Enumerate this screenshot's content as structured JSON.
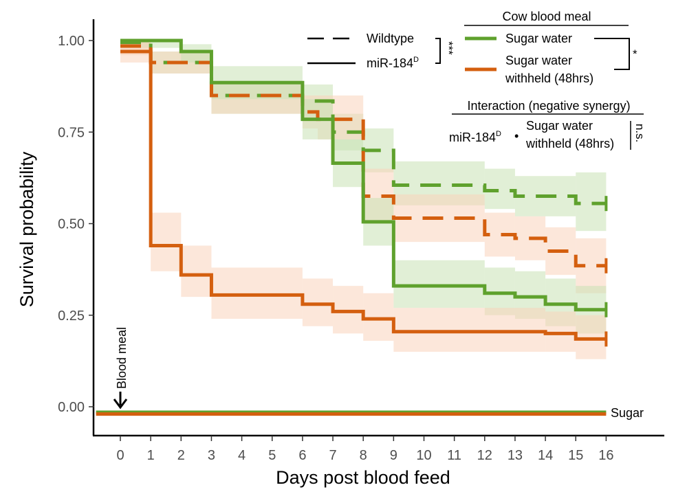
{
  "chart_data": {
    "type": "step-line",
    "title": "",
    "xlabel": "Days post blood feed",
    "ylabel": "Survival probability",
    "xlim": [
      -0.9,
      18.0
    ],
    "ylim": [
      -0.08,
      1.05
    ],
    "x_ticks": [
      0,
      1,
      2,
      3,
      4,
      5,
      6,
      7,
      8,
      9,
      10,
      11,
      12,
      13,
      14,
      15,
      16
    ],
    "y_ticks": [
      {
        "value": 0.0,
        "label": "0.00"
      },
      {
        "value": 0.25,
        "label": "0.25"
      },
      {
        "value": 0.5,
        "label": "0.50"
      },
      {
        "value": 0.75,
        "label": "0.75"
      },
      {
        "value": 1.0,
        "label": "1.00"
      }
    ],
    "colors": {
      "sugar_water": "#5fa12d",
      "sugar_withheld": "#d45f0f",
      "ci_green": "#c9e2b4",
      "ci_orange": "#f9d3bc"
    },
    "series": [
      {
        "name": "Sugar water - Wildtype",
        "color": "#5fa12d",
        "dash": "dashed",
        "steps": [
          [
            0,
            0.995
          ],
          [
            1,
            0.94
          ],
          [
            3,
            0.85
          ],
          [
            6,
            0.835
          ],
          [
            7,
            0.75
          ],
          [
            8,
            0.7
          ],
          [
            9,
            0.605
          ],
          [
            12,
            0.59
          ],
          [
            13,
            0.575
          ],
          [
            15,
            0.555
          ],
          [
            16,
            0.555
          ]
        ],
        "ci": [
          [
            0.98,
            1.0
          ],
          [
            0.91,
            0.97
          ],
          [
            0.8,
            0.89
          ],
          [
            0.79,
            0.88
          ],
          [
            0.7,
            0.8
          ],
          [
            0.64,
            0.76
          ],
          [
            0.55,
            0.67
          ],
          [
            0.54,
            0.65
          ],
          [
            0.52,
            0.63
          ],
          [
            0.48,
            0.64
          ]
        ]
      },
      {
        "name": "Sugar water withheld (48hrs) - Wildtype",
        "color": "#d45f0f",
        "dash": "dashed",
        "steps": [
          [
            0,
            0.985
          ],
          [
            1,
            0.94
          ],
          [
            3,
            0.85
          ],
          [
            6,
            0.805
          ],
          [
            6.5,
            0.785
          ],
          [
            8,
            0.575
          ],
          [
            9,
            0.515
          ],
          [
            12,
            0.47
          ],
          [
            13,
            0.46
          ],
          [
            14,
            0.425
          ],
          [
            15,
            0.385
          ],
          [
            16,
            0.385
          ]
        ],
        "ci": [
          [
            0.96,
            1.0
          ],
          [
            0.91,
            0.97
          ],
          [
            0.8,
            0.89
          ],
          [
            0.76,
            0.85
          ],
          [
            0.73,
            0.85
          ],
          [
            0.5,
            0.65
          ],
          [
            0.45,
            0.58
          ],
          [
            0.41,
            0.53
          ],
          [
            0.4,
            0.52
          ],
          [
            0.36,
            0.49
          ],
          [
            0.31,
            0.46
          ]
        ]
      },
      {
        "name": "Sugar water - miR-184D",
        "color": "#5fa12d",
        "dash": "solid",
        "steps": [
          [
            0,
            1.0
          ],
          [
            2,
            0.97
          ],
          [
            3,
            0.885
          ],
          [
            6,
            0.785
          ],
          [
            7,
            0.665
          ],
          [
            8,
            0.505
          ],
          [
            9,
            0.33
          ],
          [
            12,
            0.31
          ],
          [
            13,
            0.3
          ],
          [
            14,
            0.28
          ],
          [
            15,
            0.265
          ],
          [
            16,
            0.265
          ]
        ],
        "ci": [
          [
            0.98,
            1.0
          ],
          [
            0.94,
            0.99
          ],
          [
            0.84,
            0.93
          ],
          [
            0.73,
            0.84
          ],
          [
            0.6,
            0.73
          ],
          [
            0.44,
            0.57
          ],
          [
            0.27,
            0.4
          ],
          [
            0.25,
            0.38
          ],
          [
            0.24,
            0.37
          ],
          [
            0.22,
            0.35
          ],
          [
            0.2,
            0.33
          ]
        ]
      },
      {
        "name": "Sugar water withheld (48hrs) - miR-184D",
        "color": "#d45f0f",
        "dash": "solid",
        "steps": [
          [
            0,
            0.97
          ],
          [
            1,
            0.44
          ],
          [
            2,
            0.36
          ],
          [
            3,
            0.305
          ],
          [
            6,
            0.28
          ],
          [
            7,
            0.26
          ],
          [
            8,
            0.24
          ],
          [
            9,
            0.205
          ],
          [
            14,
            0.2
          ],
          [
            15,
            0.185
          ],
          [
            16,
            0.185
          ]
        ],
        "ci": [
          [
            0.94,
            1.0
          ],
          [
            0.37,
            0.53
          ],
          [
            0.3,
            0.44
          ],
          [
            0.24,
            0.38
          ],
          [
            0.22,
            0.35
          ],
          [
            0.2,
            0.33
          ],
          [
            0.18,
            0.31
          ],
          [
            0.15,
            0.27
          ],
          [
            0.15,
            0.26
          ],
          [
            0.13,
            0.25
          ]
        ]
      },
      {
        "name": "Sugar (no blood meal) - green",
        "color": "#5fa12d",
        "dash": "solid",
        "steps": [
          [
            -0.8,
            -0.015
          ],
          [
            16,
            -0.015
          ]
        ],
        "ci": []
      },
      {
        "name": "Sugar (no blood meal) - orange",
        "color": "#d45f0f",
        "dash": "solid",
        "steps": [
          [
            -0.8,
            -0.02
          ],
          [
            0,
            -0.02
          ],
          [
            2,
            -0.02
          ],
          [
            16,
            -0.02
          ]
        ],
        "ci": []
      }
    ],
    "annotations": {
      "blood_meal_label": "Blood meal",
      "sugar_label": "Sugar",
      "legend_header": "Cow blood meal",
      "legend_sugar_water": "Sugar water",
      "legend_withheld_line1": "Sugar water",
      "legend_withheld_line2": "withheld (48hrs)",
      "legend_wildtype": "Wildtype",
      "legend_mir_base": "miR-184",
      "legend_mir_sup": "D",
      "sig_genotype": "***",
      "sig_treatment": "*",
      "interaction_title": "Interaction (negative synergy)",
      "interaction_mir_base": "miR-184",
      "interaction_mir_sup": "D",
      "interaction_dot": "•",
      "interaction_sugar_line1": "Sugar water",
      "interaction_sugar_line2": "withheld (48hrs)",
      "interaction_sig": "n.s."
    }
  }
}
